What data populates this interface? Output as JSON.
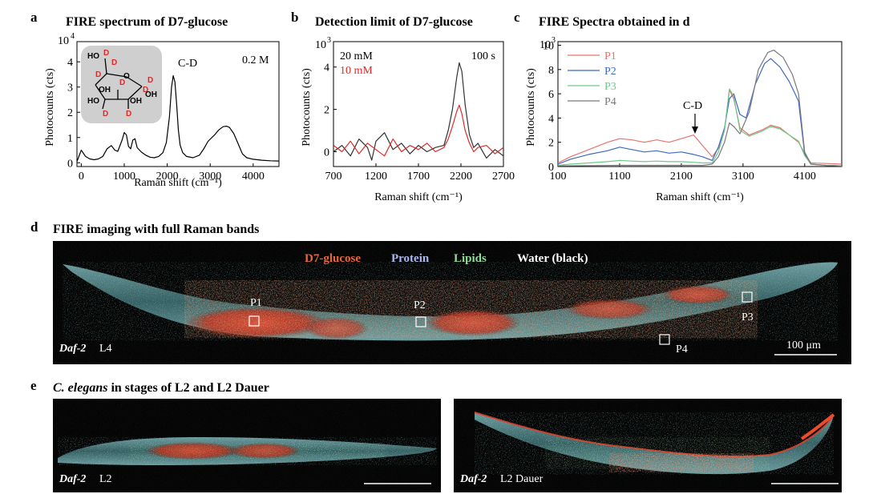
{
  "panels": {
    "a": {
      "letter": "a",
      "title": "FIRE spectrum of D7-glucose",
      "ylabel": "Photocounts (cts)",
      "xlabel": "Raman shift (cm⁻¹)",
      "exp_base": "10",
      "exp_pow": "4",
      "peak_label": "C-D",
      "conc_label": "0.2 M"
    },
    "b": {
      "letter": "b",
      "title": "Detection limit of D7-glucose",
      "ylabel": "Photocounts (cts)",
      "xlabel": "Raman shift (cm⁻¹)",
      "exp_base": "10",
      "exp_pow": "3",
      "time_label": "100 s"
    },
    "c": {
      "letter": "c",
      "title": "FIRE Spectra obtained in d",
      "ylabel": "Photocounts (cts)",
      "xlabel": "Raman shift (cm⁻¹)",
      "exp_base": "10",
      "exp_pow": "3",
      "peak_label": "C-D"
    },
    "d": {
      "letter": "d",
      "title": "FIRE imaging with full Raman bands",
      "channels": [
        {
          "label": "D7-glucose",
          "color": "#e8643c"
        },
        {
          "label": "Protein",
          "color": "#a9b7ec"
        },
        {
          "label": "Lipids",
          "color": "#8fdc9a"
        },
        {
          "label": "Water (black)",
          "color": "#ffffff"
        }
      ],
      "points": [
        "P1",
        "P2",
        "P3",
        "P4"
      ],
      "strain": "Daf-2",
      "stage": "L4",
      "scale_label": "100 μm"
    },
    "e": {
      "letter": "e",
      "title_italic": "C. elegans",
      "title_rest": " in stages of L2 and L2 Dauer",
      "left": {
        "strain": "Daf-2",
        "stage": "L2"
      },
      "right": {
        "strain": "Daf-2",
        "stage": "L2 Dauer"
      }
    }
  },
  "molecule": {
    "labels": [
      "HO",
      "D",
      "D",
      "D",
      "O",
      "D",
      "D",
      "OH",
      "D",
      "HO",
      "OH",
      "OH",
      "D",
      "D"
    ]
  },
  "chart_data": [
    {
      "type": "line",
      "title": "FIRE spectrum of D7-glucose",
      "xlabel": "Raman shift (cm⁻¹)",
      "ylabel": "Photocounts (cts)",
      "xlim": [
        -100,
        4600
      ],
      "ylim": [
        -0.15,
        4.8
      ],
      "x_ticks": [
        0,
        1000,
        2000,
        3000,
        4000
      ],
      "y_ticks": [
        0,
        1,
        2,
        3,
        4
      ],
      "y_multiplier": "10^4",
      "series": [
        {
          "color": "#000000",
          "points": [
            [
              -100,
              0.05
            ],
            [
              0,
              0.5
            ],
            [
              100,
              0.25
            ],
            [
              200,
              0.15
            ],
            [
              300,
              0.12
            ],
            [
              400,
              0.15
            ],
            [
              500,
              0.25
            ],
            [
              600,
              0.55
            ],
            [
              700,
              0.68
            ],
            [
              780,
              0.5
            ],
            [
              850,
              0.45
            ],
            [
              950,
              0.9
            ],
            [
              1000,
              1.2
            ],
            [
              1050,
              1.1
            ],
            [
              1100,
              0.65
            ],
            [
              1150,
              0.55
            ],
            [
              1200,
              0.9
            ],
            [
              1250,
              0.95
            ],
            [
              1300,
              0.6
            ],
            [
              1400,
              0.42
            ],
            [
              1500,
              0.3
            ],
            [
              1600,
              0.22
            ],
            [
              1700,
              0.2
            ],
            [
              1800,
              0.25
            ],
            [
              1900,
              0.4
            ],
            [
              1980,
              0.8
            ],
            [
              2050,
              1.8
            ],
            [
              2100,
              3.0
            ],
            [
              2140,
              3.45
            ],
            [
              2180,
              3.2
            ],
            [
              2220,
              2.3
            ],
            [
              2260,
              1.3
            ],
            [
              2300,
              0.7
            ],
            [
              2360,
              0.4
            ],
            [
              2450,
              0.25
            ],
            [
              2600,
              0.2
            ],
            [
              2750,
              0.3
            ],
            [
              2850,
              0.55
            ],
            [
              2950,
              0.85
            ],
            [
              3100,
              1.1
            ],
            [
              3200,
              1.3
            ],
            [
              3300,
              1.43
            ],
            [
              3380,
              1.45
            ],
            [
              3450,
              1.4
            ],
            [
              3550,
              1.15
            ],
            [
              3650,
              0.75
            ],
            [
              3750,
              0.35
            ],
            [
              3850,
              0.2
            ],
            [
              4000,
              0.14
            ],
            [
              4200,
              0.1
            ],
            [
              4400,
              0.08
            ],
            [
              4600,
              0.07
            ]
          ]
        }
      ]
    },
    {
      "type": "line",
      "title": "Detection limit of D7-glucose",
      "xlabel": "Raman shift (cm⁻¹)",
      "ylabel": "Photocounts (cts)",
      "xlim": [
        700,
        2700
      ],
      "ylim": [
        -0.7,
        5.2
      ],
      "x_ticks": [
        700,
        1200,
        1700,
        2200,
        2700
      ],
      "y_ticks": [
        0,
        2,
        4
      ],
      "y_multiplier": "10^3",
      "series": [
        {
          "name": "20 mM",
          "color": "#333333",
          "points": [
            [
              700,
              0.0
            ],
            [
              800,
              0.3
            ],
            [
              900,
              -0.2
            ],
            [
              1000,
              0.6
            ],
            [
              1100,
              0.2
            ],
            [
              1150,
              -0.4
            ],
            [
              1200,
              0.5
            ],
            [
              1300,
              0.9
            ],
            [
              1400,
              0.1
            ],
            [
              1500,
              0.4
            ],
            [
              1600,
              -0.1
            ],
            [
              1700,
              0.3
            ],
            [
              1800,
              0.0
            ],
            [
              1900,
              0.2
            ],
            [
              2000,
              0.3
            ],
            [
              2050,
              1.0
            ],
            [
              2100,
              2.0
            ],
            [
              2150,
              3.5
            ],
            [
              2180,
              4.2
            ],
            [
              2210,
              3.8
            ],
            [
              2250,
              2.2
            ],
            [
              2300,
              0.8
            ],
            [
              2350,
              0.2
            ],
            [
              2400,
              0.4
            ],
            [
              2500,
              -0.3
            ],
            [
              2600,
              0.1
            ],
            [
              2700,
              -0.2
            ]
          ]
        },
        {
          "name": "10 mM",
          "color": "#e02a2a",
          "points": [
            [
              700,
              0.3
            ],
            [
              800,
              0.0
            ],
            [
              900,
              0.5
            ],
            [
              1000,
              -0.1
            ],
            [
              1100,
              0.4
            ],
            [
              1200,
              0.1
            ],
            [
              1300,
              -0.2
            ],
            [
              1400,
              0.6
            ],
            [
              1500,
              0.0
            ],
            [
              1600,
              0.3
            ],
            [
              1700,
              0.1
            ],
            [
              1800,
              0.4
            ],
            [
              1900,
              0.0
            ],
            [
              2000,
              0.2
            ],
            [
              2050,
              0.6
            ],
            [
              2100,
              1.2
            ],
            [
              2150,
              1.9
            ],
            [
              2180,
              2.2
            ],
            [
              2210,
              1.8
            ],
            [
              2250,
              1.0
            ],
            [
              2300,
              0.4
            ],
            [
              2350,
              0.0
            ],
            [
              2400,
              0.2
            ],
            [
              2500,
              0.3
            ],
            [
              2600,
              -0.1
            ],
            [
              2700,
              0.2
            ]
          ]
        }
      ]
    },
    {
      "type": "line",
      "title": "FIRE Spectra obtained in d",
      "xlabel": "Raman shift (cm⁻¹)",
      "ylabel": "Photocounts (cts)",
      "xlim": [
        100,
        4700
      ],
      "ylim": [
        0,
        10.3
      ],
      "x_ticks": [
        100,
        1100,
        2100,
        3100,
        4100
      ],
      "y_ticks": [
        0,
        2,
        4,
        6,
        8,
        10
      ],
      "y_multiplier": "10^3",
      "series": [
        {
          "name": "P1",
          "color": "#e8736e",
          "points": [
            [
              100,
              0.3
            ],
            [
              300,
              0.8
            ],
            [
              600,
              1.4
            ],
            [
              900,
              2.0
            ],
            [
              1100,
              2.3
            ],
            [
              1300,
              2.2
            ],
            [
              1500,
              2.0
            ],
            [
              1700,
              2.2
            ],
            [
              1900,
              2.0
            ],
            [
              2100,
              2.3
            ],
            [
              2300,
              2.6
            ],
            [
              2450,
              1.7
            ],
            [
              2600,
              0.8
            ],
            [
              2700,
              1.5
            ],
            [
              2800,
              3.0
            ],
            [
              2880,
              6.3
            ],
            [
              2950,
              5.6
            ],
            [
              3050,
              3.2
            ],
            [
              3200,
              2.6
            ],
            [
              3400,
              3.0
            ],
            [
              3550,
              3.4
            ],
            [
              3700,
              3.2
            ],
            [
              3850,
              2.6
            ],
            [
              4000,
              2.0
            ],
            [
              4100,
              1.1
            ],
            [
              4200,
              0.3
            ],
            [
              4450,
              0.25
            ],
            [
              4700,
              0.2
            ]
          ]
        },
        {
          "name": "P2",
          "color": "#3f69c4",
          "points": [
            [
              100,
              0.2
            ],
            [
              300,
              0.6
            ],
            [
              600,
              1.0
            ],
            [
              900,
              1.3
            ],
            [
              1100,
              1.6
            ],
            [
              1300,
              1.4
            ],
            [
              1500,
              1.2
            ],
            [
              1700,
              1.3
            ],
            [
              1900,
              1.1
            ],
            [
              2100,
              1.2
            ],
            [
              2300,
              1.0
            ],
            [
              2450,
              0.8
            ],
            [
              2600,
              0.5
            ],
            [
              2700,
              1.6
            ],
            [
              2800,
              3.2
            ],
            [
              2880,
              5.6
            ],
            [
              2950,
              6.0
            ],
            [
              3050,
              4.3
            ],
            [
              3150,
              4.0
            ],
            [
              3300,
              6.8
            ],
            [
              3450,
              8.5
            ],
            [
              3550,
              8.9
            ],
            [
              3700,
              8.2
            ],
            [
              3850,
              7.0
            ],
            [
              4000,
              5.4
            ],
            [
              4100,
              1.0
            ],
            [
              4200,
              0.2
            ],
            [
              4450,
              0.1
            ],
            [
              4700,
              0.05
            ]
          ]
        },
        {
          "name": "P3",
          "color": "#6cc98a",
          "points": [
            [
              100,
              0.1
            ],
            [
              300,
              0.2
            ],
            [
              600,
              0.3
            ],
            [
              900,
              0.4
            ],
            [
              1100,
              0.5
            ],
            [
              1300,
              0.45
            ],
            [
              1500,
              0.4
            ],
            [
              1700,
              0.45
            ],
            [
              1900,
              0.4
            ],
            [
              2100,
              0.4
            ],
            [
              2300,
              0.35
            ],
            [
              2450,
              0.3
            ],
            [
              2600,
              0.3
            ],
            [
              2700,
              1.2
            ],
            [
              2800,
              3.0
            ],
            [
              2880,
              6.4
            ],
            [
              2950,
              5.8
            ],
            [
              3050,
              3.0
            ],
            [
              3200,
              2.5
            ],
            [
              3400,
              2.9
            ],
            [
              3550,
              3.3
            ],
            [
              3700,
              3.1
            ],
            [
              3850,
              2.6
            ],
            [
              4000,
              2.1
            ],
            [
              4100,
              0.9
            ],
            [
              4200,
              0.2
            ],
            [
              4450,
              0.1
            ],
            [
              4700,
              0.05
            ]
          ]
        },
        {
          "name": "P4",
          "color": "#7a7a7a",
          "points": [
            [
              100,
              0.05
            ],
            [
              600,
              0.08
            ],
            [
              1100,
              0.1
            ],
            [
              1600,
              0.1
            ],
            [
              2100,
              0.1
            ],
            [
              2450,
              0.1
            ],
            [
              2600,
              0.2
            ],
            [
              2700,
              0.8
            ],
            [
              2800,
              2.0
            ],
            [
              2880,
              3.6
            ],
            [
              2950,
              3.3
            ],
            [
              3050,
              2.7
            ],
            [
              3200,
              4.5
            ],
            [
              3350,
              8.0
            ],
            [
              3500,
              9.4
            ],
            [
              3600,
              9.6
            ],
            [
              3750,
              9.0
            ],
            [
              3900,
              7.6
            ],
            [
              4000,
              6.0
            ],
            [
              4100,
              1.2
            ],
            [
              4200,
              0.2
            ],
            [
              4450,
              0.08
            ],
            [
              4700,
              0.05
            ]
          ]
        }
      ]
    }
  ]
}
